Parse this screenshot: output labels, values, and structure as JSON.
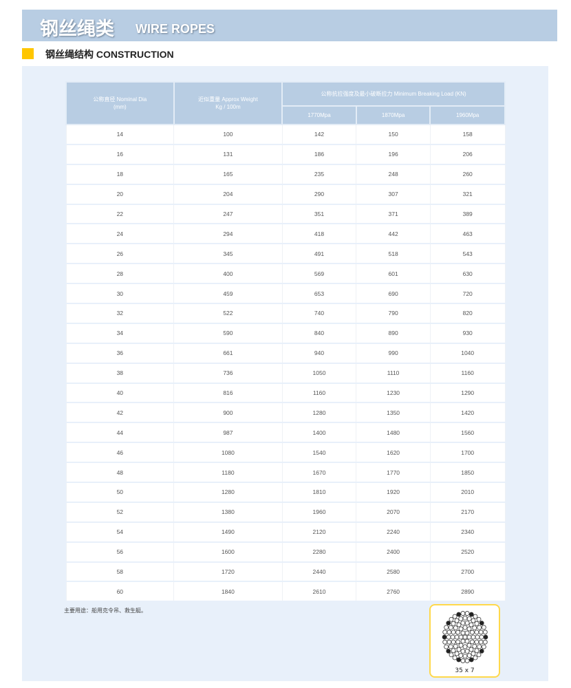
{
  "banner": {
    "title_cn": "钢丝绳类",
    "title_en": "WIRE ROPES"
  },
  "section": {
    "title": "钢丝绳结构 CONSTRUCTION"
  },
  "colors": {
    "banner": "#b8cde3",
    "panel": "#e8f0fa",
    "accent": "#ffc600"
  },
  "table": {
    "headers": {
      "dia": "公称直径 Nominal Dia (mm)",
      "weight": "近似重量 Approx Weight Kg / 100m",
      "load": "公称抗拉强度及最小破断拉力 Minimum Breaking Load (KN)",
      "grades": [
        "1770Mpa",
        "1870Mpa",
        "1960Mpa"
      ]
    },
    "rows": [
      [
        "14",
        "100",
        "142",
        "150",
        "158"
      ],
      [
        "16",
        "131",
        "186",
        "196",
        "206"
      ],
      [
        "18",
        "165",
        "235",
        "248",
        "260"
      ],
      [
        "20",
        "204",
        "290",
        "307",
        "321"
      ],
      [
        "22",
        "247",
        "351",
        "371",
        "389"
      ],
      [
        "24",
        "294",
        "418",
        "442",
        "463"
      ],
      [
        "26",
        "345",
        "491",
        "518",
        "543"
      ],
      [
        "28",
        "400",
        "569",
        "601",
        "630"
      ],
      [
        "30",
        "459",
        "653",
        "690",
        "720"
      ],
      [
        "32",
        "522",
        "740",
        "790",
        "820"
      ],
      [
        "34",
        "590",
        "840",
        "890",
        "930"
      ],
      [
        "36",
        "661",
        "940",
        "990",
        "1040"
      ],
      [
        "38",
        "736",
        "1050",
        "1110",
        "1160"
      ],
      [
        "40",
        "816",
        "1160",
        "1230",
        "1290"
      ],
      [
        "42",
        "900",
        "1280",
        "1350",
        "1420"
      ],
      [
        "44",
        "987",
        "1400",
        "1480",
        "1560"
      ],
      [
        "46",
        "1080",
        "1540",
        "1620",
        "1700"
      ],
      [
        "48",
        "1180",
        "1670",
        "1770",
        "1850"
      ],
      [
        "50",
        "1280",
        "1810",
        "1920",
        "2010"
      ],
      [
        "52",
        "1380",
        "1960",
        "2070",
        "2170"
      ],
      [
        "54",
        "1490",
        "2120",
        "2240",
        "2340"
      ],
      [
        "56",
        "1600",
        "2280",
        "2400",
        "2520"
      ],
      [
        "58",
        "1720",
        "2440",
        "2580",
        "2700"
      ],
      [
        "60",
        "1840",
        "2610",
        "2760",
        "2890"
      ]
    ]
  },
  "note": "主要用途：船用克令吊、救生艇。",
  "rope": {
    "label": "35 x 7",
    "icon": "wire-rope-cross-section"
  }
}
